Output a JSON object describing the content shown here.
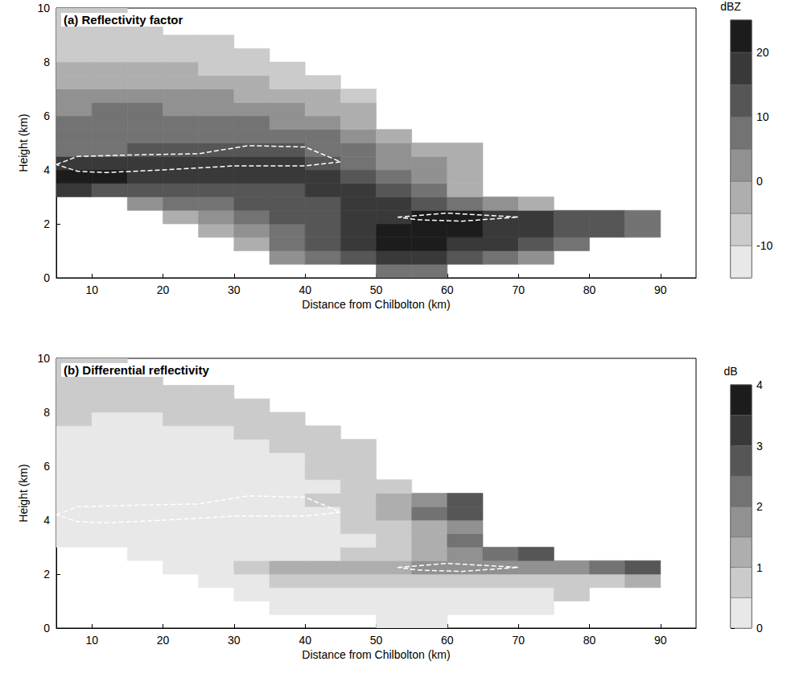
{
  "chart_data": [
    {
      "type": "heatmap",
      "title": "(a) Reflectivity factor",
      "x_label": "Distance from Chilbolton (km)",
      "y_label": "Height (km)",
      "xlim": [
        5,
        95
      ],
      "xticks": [
        10,
        20,
        30,
        40,
        50,
        60,
        70,
        80,
        90
      ],
      "ylim": [
        0,
        10
      ],
      "yticks": [
        0,
        2,
        4,
        6,
        8,
        10
      ],
      "grid": false,
      "x": [
        7.5,
        12.5,
        17.5,
        22.5,
        27.5,
        32.5,
        37.5,
        42.5,
        47.5,
        52.5,
        57.5,
        62.5,
        67.5,
        72.5,
        77.5,
        82.5,
        87.5
      ],
      "y": [
        0.25,
        0.75,
        1.25,
        1.75,
        2.25,
        2.75,
        3.25,
        3.75,
        4.25,
        4.75,
        5.25,
        5.75,
        6.25,
        6.75,
        7.25,
        7.75,
        8.25,
        8.75,
        9.25,
        9.75
      ],
      "cells": [
        [
          null,
          null,
          null,
          null,
          null,
          null,
          null,
          null,
          null,
          5,
          5,
          null,
          null,
          null,
          null,
          null,
          null
        ],
        [
          null,
          null,
          null,
          null,
          null,
          null,
          0,
          5,
          10,
          15,
          15,
          10,
          5,
          0,
          null,
          null,
          null
        ],
        [
          null,
          null,
          null,
          null,
          null,
          -5,
          5,
          10,
          15,
          20,
          20,
          15,
          15,
          10,
          5,
          null,
          null
        ],
        [
          null,
          null,
          null,
          null,
          -5,
          0,
          5,
          10,
          15,
          20,
          20,
          20,
          15,
          15,
          10,
          10,
          5
        ],
        [
          null,
          null,
          null,
          -5,
          0,
          5,
          10,
          10,
          15,
          15,
          20,
          20,
          15,
          15,
          10,
          10,
          5
        ],
        [
          null,
          null,
          0,
          5,
          5,
          10,
          10,
          10,
          15,
          15,
          10,
          5,
          0,
          -5,
          null,
          null,
          null
        ],
        [
          15,
          10,
          10,
          10,
          10,
          10,
          10,
          15,
          15,
          10,
          5,
          -5,
          null,
          null,
          null,
          null,
          null
        ],
        [
          20,
          20,
          15,
          15,
          15,
          15,
          15,
          15,
          10,
          5,
          0,
          -5,
          null,
          null,
          null,
          null,
          null
        ],
        [
          15,
          15,
          15,
          15,
          15,
          15,
          15,
          10,
          5,
          0,
          0,
          -5,
          null,
          null,
          null,
          null,
          null
        ],
        [
          5,
          5,
          10,
          10,
          10,
          10,
          10,
          5,
          5,
          0,
          -5,
          -5,
          null,
          null,
          null,
          null,
          null
        ],
        [
          5,
          5,
          5,
          5,
          5,
          5,
          5,
          5,
          0,
          -5,
          null,
          null,
          null,
          null,
          null,
          null,
          null
        ],
        [
          5,
          5,
          5,
          5,
          5,
          5,
          0,
          0,
          -5,
          null,
          null,
          null,
          null,
          null,
          null,
          null,
          null
        ],
        [
          0,
          5,
          5,
          0,
          0,
          0,
          0,
          -5,
          -5,
          null,
          null,
          null,
          null,
          null,
          null,
          null,
          null
        ],
        [
          0,
          0,
          0,
          0,
          0,
          -5,
          -5,
          -5,
          -10,
          null,
          null,
          null,
          null,
          null,
          null,
          null,
          null
        ],
        [
          -5,
          -5,
          -5,
          -5,
          -5,
          -5,
          -10,
          -10,
          null,
          null,
          null,
          null,
          null,
          null,
          null,
          null,
          null
        ],
        [
          -5,
          -5,
          -5,
          -5,
          -10,
          -10,
          -10,
          null,
          null,
          null,
          null,
          null,
          null,
          null,
          null,
          null,
          null
        ],
        [
          -10,
          -10,
          -10,
          -10,
          -10,
          -10,
          null,
          null,
          null,
          null,
          null,
          null,
          null,
          null,
          null,
          null,
          null
        ],
        [
          -10,
          -10,
          -10,
          -10,
          -10,
          null,
          null,
          null,
          null,
          null,
          null,
          null,
          null,
          null,
          null,
          null,
          null
        ],
        [
          -10,
          -10,
          -10,
          null,
          null,
          null,
          null,
          null,
          null,
          null,
          null,
          null,
          null,
          null,
          null,
          null,
          null
        ],
        [
          -10,
          -10,
          null,
          null,
          null,
          null,
          null,
          null,
          null,
          null,
          null,
          null,
          null,
          null,
          null,
          null,
          null
        ]
      ],
      "colorbar": {
        "label": "dBZ",
        "range": [
          -15,
          25
        ],
        "levels": [
          -15,
          -10,
          -5,
          0,
          5,
          10,
          15,
          20,
          25
        ],
        "ticks": [
          -10,
          0,
          10,
          20
        ]
      },
      "contours": [
        {
          "x": [
            5,
            8,
            15,
            25,
            32,
            40,
            45,
            40,
            30,
            20,
            12,
            8,
            5
          ],
          "y": [
            4.2,
            4.5,
            4.55,
            4.6,
            4.9,
            4.85,
            4.3,
            4.15,
            4.15,
            4.0,
            3.9,
            3.95,
            4.2
          ],
          "color": "#ffffff",
          "line_style": "dashed"
        },
        {
          "x": [
            53,
            60,
            70,
            62,
            56,
            53
          ],
          "y": [
            2.25,
            2.4,
            2.25,
            2.1,
            2.15,
            2.25
          ],
          "color": "#ffffff",
          "line_style": "dashed"
        }
      ]
    },
    {
      "type": "heatmap",
      "title": "(b) Differential reflectivity",
      "x_label": "Distance from Chilbolton (km)",
      "y_label": "Height (km)",
      "xlim": [
        5,
        95
      ],
      "xticks": [
        10,
        20,
        30,
        40,
        50,
        60,
        70,
        80,
        90
      ],
      "ylim": [
        0,
        10
      ],
      "yticks": [
        0,
        2,
        4,
        6,
        8,
        10
      ],
      "grid": false,
      "x": [
        7.5,
        12.5,
        17.5,
        22.5,
        27.5,
        32.5,
        37.5,
        42.5,
        47.5,
        52.5,
        57.5,
        62.5,
        67.5,
        72.5,
        77.5,
        82.5,
        87.5
      ],
      "y": [
        0.25,
        0.75,
        1.25,
        1.75,
        2.25,
        2.75,
        3.25,
        3.75,
        4.25,
        4.75,
        5.25,
        5.75,
        6.25,
        6.75,
        7.25,
        7.75,
        8.25,
        8.75,
        9.25,
        9.75
      ],
      "cells": [
        [
          null,
          null,
          null,
          null,
          null,
          null,
          null,
          null,
          null,
          0.3,
          0.3,
          null,
          null,
          null,
          null,
          null,
          null
        ],
        [
          null,
          null,
          null,
          null,
          null,
          null,
          0.3,
          0.3,
          0.3,
          0.3,
          0.3,
          0.3,
          0.3,
          0.3,
          null,
          null,
          null
        ],
        [
          null,
          null,
          null,
          null,
          null,
          0.3,
          0.3,
          0.3,
          0.3,
          0.3,
          0.3,
          0.3,
          0.3,
          0.3,
          0.5,
          null,
          null
        ],
        [
          null,
          null,
          null,
          null,
          0.3,
          0.3,
          0.5,
          0.5,
          0.5,
          0.5,
          0.8,
          0.8,
          0.8,
          0.8,
          0.8,
          0.8,
          1.3
        ],
        [
          null,
          null,
          null,
          0.3,
          0.3,
          0.8,
          1.3,
          1.3,
          1.3,
          1.3,
          1.8,
          1.8,
          1.8,
          1.8,
          1.8,
          2.3,
          2.8
        ],
        [
          null,
          null,
          0.3,
          0.3,
          0.3,
          0.3,
          0.3,
          0.3,
          0.5,
          0.8,
          1.3,
          1.8,
          2.3,
          2.8,
          null,
          null,
          null
        ],
        [
          0.3,
          0.3,
          0.3,
          0.3,
          0.3,
          0.3,
          0.3,
          0.3,
          0.3,
          0.8,
          1.3,
          2.3,
          null,
          null,
          null,
          null,
          null
        ],
        [
          0.3,
          0.3,
          0.3,
          0.3,
          0.3,
          0.3,
          0.3,
          0.3,
          0.5,
          0.8,
          1.3,
          1.8,
          null,
          null,
          null,
          null,
          null
        ],
        [
          0.3,
          0.3,
          0.3,
          0.3,
          0.3,
          0.3,
          0.3,
          0.3,
          0.8,
          1.3,
          2.3,
          2.8,
          null,
          null,
          null,
          null,
          null
        ],
        [
          0.3,
          0.3,
          0.3,
          0.3,
          0.3,
          0.3,
          0.3,
          0.5,
          0.8,
          1.3,
          1.8,
          2.8,
          null,
          null,
          null,
          null,
          null
        ],
        [
          0.3,
          0.3,
          0.3,
          0.3,
          0.3,
          0.3,
          0.3,
          0.3,
          0.5,
          0.8,
          null,
          null,
          null,
          null,
          null,
          null,
          null
        ],
        [
          0.3,
          0.3,
          0.3,
          0.3,
          0.3,
          0.3,
          0.3,
          0.5,
          0.8,
          null,
          null,
          null,
          null,
          null,
          null,
          null,
          null
        ],
        [
          0.3,
          0.3,
          0.3,
          0.3,
          0.3,
          0.3,
          0.3,
          0.5,
          0.8,
          null,
          null,
          null,
          null,
          null,
          null,
          null,
          null
        ],
        [
          0.3,
          0.3,
          0.3,
          0.3,
          0.3,
          0.3,
          0.5,
          0.5,
          0.8,
          null,
          null,
          null,
          null,
          null,
          null,
          null,
          null
        ],
        [
          0.3,
          0.3,
          0.3,
          0.3,
          0.3,
          0.5,
          0.5,
          0.8,
          null,
          null,
          null,
          null,
          null,
          null,
          null,
          null,
          null
        ],
        [
          0.5,
          0.3,
          0.3,
          0.5,
          0.5,
          0.8,
          0.8,
          null,
          null,
          null,
          null,
          null,
          null,
          null,
          null,
          null,
          null
        ],
        [
          0.5,
          0.5,
          0.5,
          0.5,
          0.8,
          0.8,
          null,
          null,
          null,
          null,
          null,
          null,
          null,
          null,
          null,
          null,
          null
        ],
        [
          0.5,
          0.5,
          0.5,
          0.8,
          0.8,
          null,
          null,
          null,
          null,
          null,
          null,
          null,
          null,
          null,
          null,
          null,
          null
        ],
        [
          0.8,
          0.5,
          0.8,
          null,
          null,
          null,
          null,
          null,
          null,
          null,
          null,
          null,
          null,
          null,
          null,
          null,
          null
        ],
        [
          0.8,
          0.8,
          null,
          null,
          null,
          null,
          null,
          null,
          null,
          null,
          null,
          null,
          null,
          null,
          null,
          null,
          null
        ]
      ],
      "colorbar": {
        "label": "dB",
        "range": [
          0,
          4
        ],
        "levels": [
          0,
          0.5,
          1,
          1.5,
          2,
          2.5,
          3,
          3.5,
          4
        ],
        "ticks": [
          0,
          1,
          2,
          3,
          4
        ]
      },
      "contours": [
        {
          "x": [
            5,
            8,
            15,
            25,
            32,
            40,
            45,
            40,
            30,
            20,
            12,
            8,
            5
          ],
          "y": [
            4.2,
            4.5,
            4.55,
            4.6,
            4.9,
            4.85,
            4.3,
            4.15,
            4.15,
            4.0,
            3.9,
            3.95,
            4.2
          ],
          "color": "#ffffff",
          "line_style": "dashed"
        },
        {
          "x": [
            53,
            60,
            70,
            62,
            56,
            53
          ],
          "y": [
            2.25,
            2.4,
            2.25,
            2.1,
            2.15,
            2.25
          ],
          "color": "#ffffff",
          "line_style": "dashed"
        }
      ]
    }
  ]
}
